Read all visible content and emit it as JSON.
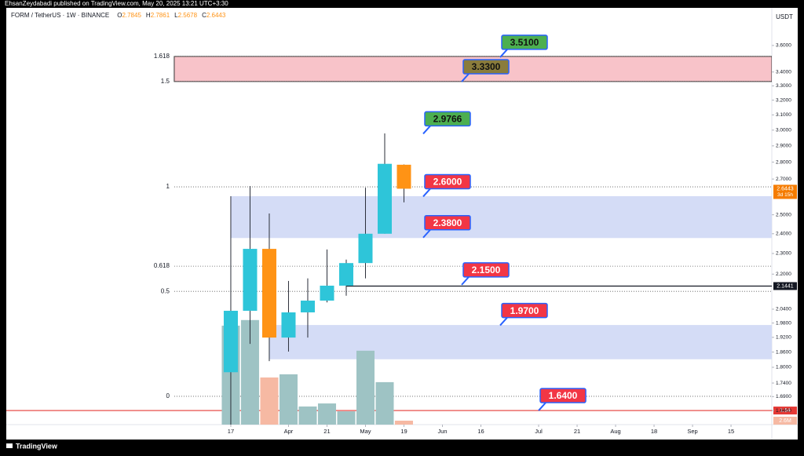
{
  "banner": "EhsanZeydabadi published on TradingView.com, May 20, 2025 13:21 UTC+3:30",
  "footer": "TradingView",
  "chart_data": {
    "type": "candlestick",
    "title": "FORM / TetherUS · 1W · BINANCE",
    "ohlc_labels": [
      "O",
      "H",
      "L",
      "C"
    ],
    "ohlc_values": [
      2.7845,
      2.7861,
      2.5678,
      2.6443
    ],
    "axis_unit": "USDT",
    "log_scale": true,
    "grid": false,
    "x": [
      0,
      1,
      2,
      3,
      4,
      5,
      6,
      7,
      8,
      9
    ],
    "open": [
      1.781,
      2.033,
      2.323,
      1.919,
      2.026,
      2.078,
      2.146,
      2.253,
      2.4,
      2.7845
    ],
    "high": [
      2.602,
      2.66,
      2.507,
      2.168,
      2.18,
      2.32,
      2.27,
      2.65,
      2.979,
      2.7861
    ],
    "low": [
      1.59,
      1.893,
      1.824,
      1.862,
      1.919,
      2.07,
      2.1,
      2.18,
      2.4,
      2.5678
    ],
    "close": [
      2.033,
      2.323,
      1.919,
      2.026,
      2.078,
      2.146,
      2.253,
      2.4,
      2.79,
      2.6443
    ],
    "up_color": "#2ec5d9",
    "down_color": "#ff9315",
    "volume": [
      65.5,
      69.2,
      31.2,
      33.3,
      12.0,
      14.0,
      8.8,
      48.9,
      28.1,
      2.6
    ],
    "volume_up_color": "#9ec3c4",
    "volume_down_color": "#f6b9a3",
    "volume_ylim": [
      0,
      80
    ],
    "volume_label": "2.6M",
    "ylim": [
      1.591,
      3.774
    ],
    "yticks": [
      {
        "value": 3.6,
        "label": "3.6000"
      },
      {
        "value": 3.4,
        "label": "3.4000"
      },
      {
        "value": 3.3,
        "label": "3.3000"
      },
      {
        "value": 3.2,
        "label": "3.2000"
      },
      {
        "value": 3.1,
        "label": "3.1000"
      },
      {
        "value": 3.0,
        "label": "3.0000"
      },
      {
        "value": 2.9,
        "label": "2.9000"
      },
      {
        "value": 2.8,
        "label": "2.8000"
      },
      {
        "value": 2.7,
        "label": "2.7000"
      },
      {
        "value": 2.5,
        "label": "2.5000"
      },
      {
        "value": 2.4,
        "label": "2.4000"
      },
      {
        "value": 2.3,
        "label": "2.3000"
      },
      {
        "value": 2.2,
        "label": "2.2000"
      },
      {
        "value": 2.04,
        "label": "2.0400"
      },
      {
        "value": 1.98,
        "label": "1.9800"
      },
      {
        "value": 1.92,
        "label": "1.9200"
      },
      {
        "value": 1.86,
        "label": "1.8600"
      },
      {
        "value": 1.8,
        "label": "1.8000"
      },
      {
        "value": 1.74,
        "label": "1.7400"
      },
      {
        "value": 1.69,
        "label": "1.6900"
      },
      {
        "value": 1.64,
        "label": "1.6400"
      }
    ],
    "xlim": [
      -11.67,
      28.12
    ],
    "xticks": [
      {
        "value": 0,
        "label": "17"
      },
      {
        "value": 3,
        "label": "Apr"
      },
      {
        "value": 5,
        "label": "21"
      },
      {
        "value": 7,
        "label": "May"
      },
      {
        "value": 9,
        "label": "19"
      },
      {
        "value": 11,
        "label": "Jun"
      },
      {
        "value": 13,
        "label": "16"
      },
      {
        "value": 16,
        "label": "Jul"
      },
      {
        "value": 18,
        "label": "21"
      },
      {
        "value": 20,
        "label": "Aug"
      },
      {
        "value": 22,
        "label": "18"
      },
      {
        "value": 24,
        "label": "Sep"
      },
      {
        "value": 26,
        "label": "15"
      }
    ],
    "last_price": {
      "value": 2.6443,
      "countdown": "3d 15h",
      "color": "#f57c00"
    },
    "fib_start": -2.94,
    "fib_levels": [
      {
        "label": "1.618",
        "value": 3.516
      },
      {
        "label": "1.5",
        "value": 3.331
      },
      {
        "label": "1",
        "value": 2.655
      },
      {
        "label": "0.618",
        "value": 2.238
      },
      {
        "label": "0.5",
        "value": 2.12
      },
      {
        "label": "0",
        "value": 1.691
      }
    ],
    "zones": [
      {
        "low": 3.331,
        "high": 3.516,
        "start": -2.94,
        "color": "#f8c3c9",
        "border": "#333333"
      },
      {
        "low": 2.38,
        "high": 2.6,
        "start": 0,
        "color": "#d4dcf6",
        "border": "#d4dcf6"
      },
      {
        "low": 1.833,
        "high": 1.97,
        "start": 2,
        "color": "#d4dcf6",
        "border": "#d4dcf6"
      }
    ],
    "lines": [
      {
        "value": 1.64,
        "start": -11.67,
        "color": "#e53935"
      },
      {
        "value": 2.1441,
        "start": 6,
        "color": "#131722"
      }
    ],
    "annotations": [
      {
        "value": 3.51,
        "label": "3.5100",
        "x": 14,
        "color": "#4caf50",
        "text_color": "#111111"
      },
      {
        "value": 3.33,
        "label": "3.3300",
        "x": 12,
        "color": "#8a7c3c",
        "text_color": "#111111"
      },
      {
        "value": 2.9766,
        "label": "2.9766",
        "x": 10,
        "color": "#4caf50",
        "text_color": "#111111"
      },
      {
        "value": 2.6,
        "label": "2.6000",
        "x": 10,
        "color": "#f23645",
        "text_color": "#ffffff"
      },
      {
        "value": 2.38,
        "label": "2.3800",
        "x": 10,
        "color": "#f23645",
        "text_color": "#ffffff"
      },
      {
        "value": 2.15,
        "label": "2.1500",
        "x": 12,
        "color": "#f23645",
        "text_color": "#ffffff"
      },
      {
        "value": 1.97,
        "label": "1.9700",
        "x": 14,
        "color": "#f23645",
        "text_color": "#ffffff"
      },
      {
        "value": 1.64,
        "label": "1.6400",
        "x": 16,
        "color": "#f23645",
        "text_color": "#ffffff"
      }
    ]
  }
}
